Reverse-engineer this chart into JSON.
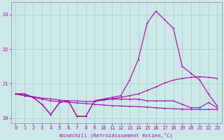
{
  "xlabel": "Windchill (Refroidissement éolien,°C)",
  "background_color": "#cce8e8",
  "line_color": "#aa00aa",
  "grid_color": "#aacccc",
  "x_values": [
    0,
    1,
    2,
    3,
    4,
    5,
    6,
    7,
    8,
    9,
    10,
    11,
    12,
    13,
    14,
    15,
    16,
    17,
    18,
    19,
    20,
    21,
    22,
    23
  ],
  "series_flat_low": [
    20.7,
    20.65,
    20.6,
    20.55,
    20.5,
    20.48,
    20.46,
    20.44,
    20.42,
    20.4,
    20.38,
    20.36,
    20.35,
    20.34,
    20.33,
    20.32,
    20.3,
    20.28,
    20.27,
    20.26,
    20.25,
    20.25,
    20.25,
    20.25
  ],
  "series_flat_high": [
    20.7,
    20.65,
    20.62,
    20.58,
    20.56,
    20.52,
    20.5,
    20.5,
    20.48,
    20.48,
    20.52,
    20.56,
    20.6,
    20.65,
    20.7,
    20.8,
    20.9,
    21.02,
    21.1,
    21.15,
    21.18,
    21.2,
    21.18,
    21.15
  ],
  "series_zigzag": [
    20.7,
    20.7,
    20.6,
    20.4,
    20.1,
    20.45,
    20.5,
    20.05,
    20.05,
    20.5,
    20.55,
    20.55,
    20.55,
    20.55,
    20.55,
    20.5,
    20.5,
    20.5,
    20.5,
    20.4,
    20.3,
    20.3,
    20.45,
    20.3
  ],
  "series_peak": [
    20.7,
    20.7,
    20.6,
    20.4,
    20.1,
    20.45,
    20.5,
    20.05,
    20.05,
    20.5,
    20.55,
    20.6,
    20.65,
    21.1,
    21.7,
    22.75,
    23.1,
    22.85,
    22.6,
    21.5,
    21.3,
    21.1,
    20.7,
    20.35
  ],
  "ylim_bottom": 19.85,
  "ylim_top": 23.35,
  "ytick_labels": [
    "20",
    "21",
    "22",
    "23"
  ],
  "ytick_values": [
    20,
    21,
    22,
    23
  ],
  "xlim_left": -0.5,
  "xlim_right": 23.5,
  "xlabel_fontsize": 5.2,
  "tick_fontsize": 5.0,
  "linewidth": 0.8,
  "markersize": 2.0
}
